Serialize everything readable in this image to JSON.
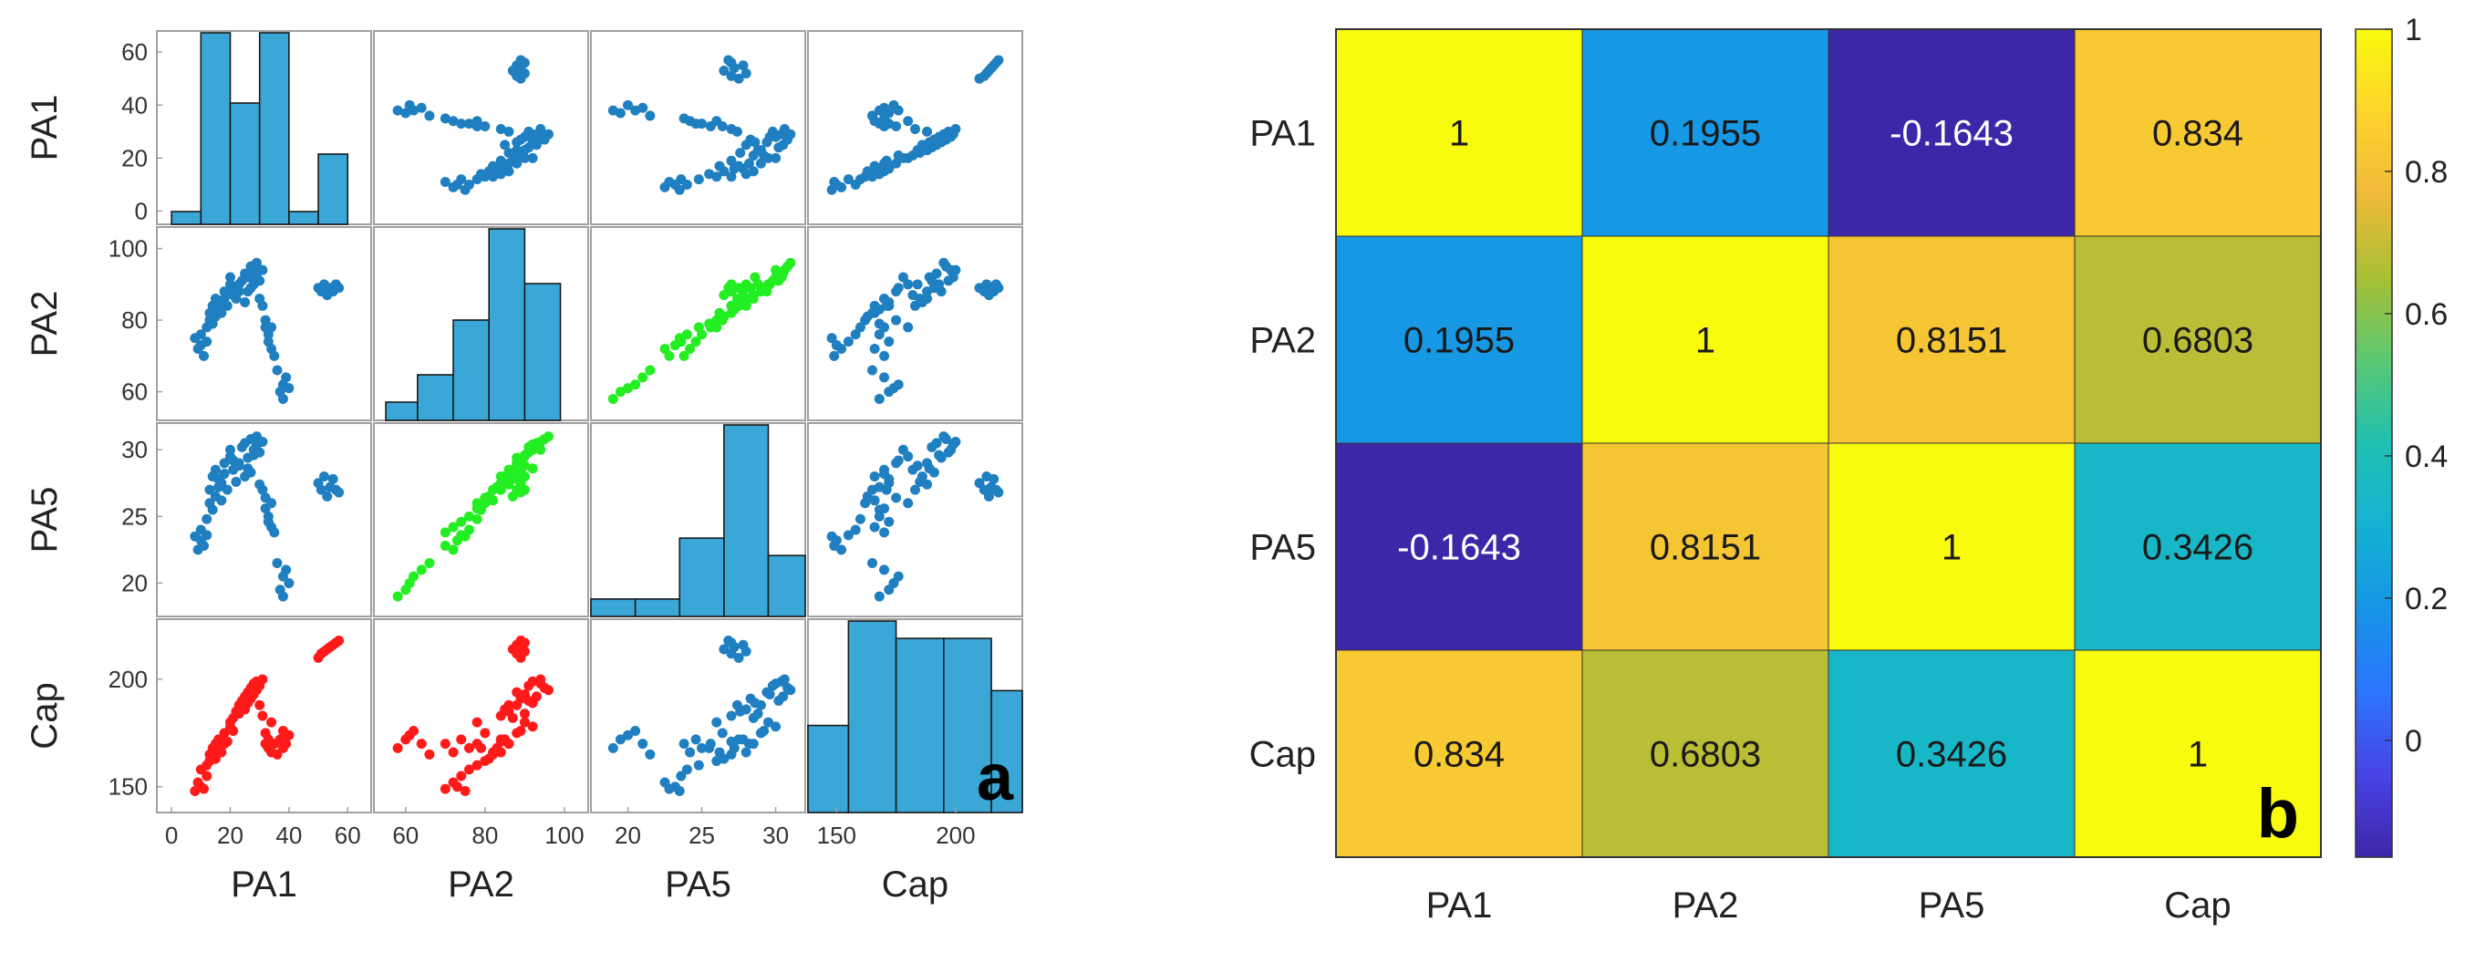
{
  "colors": {
    "histogram_fill": "#3aa7d6",
    "scatter_default": "#1f7fc0",
    "scatter_highlight_green": "#22ee22",
    "scatter_highlight_red": "#ff1a1a",
    "heatmap_colormap": "parula"
  },
  "chart_data": [
    {
      "type": "scatter",
      "subtype": "scatter-matrix",
      "panel_label": "a",
      "variables": [
        "PA1",
        "PA2",
        "PA5",
        "Cap"
      ],
      "axes": {
        "PA1": {
          "range": [
            -5,
            68
          ],
          "ticks": [
            0,
            20,
            40,
            60
          ],
          "tick_labels": [
            "0",
            "20",
            "40",
            "60"
          ]
        },
        "PA2": {
          "range": [
            52,
            106
          ],
          "ticks": [
            60,
            80,
            100
          ],
          "tick_labels": [
            "60",
            "80",
            "100"
          ]
        },
        "PA5": {
          "range": [
            17.5,
            32
          ],
          "ticks": [
            20,
            25,
            30
          ],
          "tick_labels": [
            "20",
            "25",
            "30"
          ]
        },
        "Cap": {
          "range": [
            138,
            228
          ],
          "ticks": [
            150,
            200
          ],
          "tick_labels": [
            "150",
            "200"
          ]
        }
      },
      "histograms": {
        "PA1": {
          "edges": [
            0,
            10,
            20,
            30,
            40,
            50,
            60
          ],
          "counts": [
            2,
            30,
            19,
            30,
            2,
            11
          ]
        },
        "PA2": {
          "edges": [
            55,
            63,
            72,
            81,
            90,
            99
          ],
          "counts": [
            2,
            5,
            11,
            21,
            15
          ]
        },
        "PA5": {
          "edges": [
            17.5,
            20.5,
            23.5,
            26.5,
            29.5,
            32.0
          ],
          "counts": [
            2,
            2,
            9,
            22,
            7
          ]
        },
        "Cap": {
          "edges": [
            135,
            155,
            175,
            195,
            215,
            235
          ],
          "counts": [
            10,
            22,
            20,
            20,
            14
          ]
        }
      },
      "highlight": {
        "green": [
          [
            "PA2",
            "PA5"
          ],
          [
            "PA5",
            "PA2"
          ]
        ],
        "red": [
          [
            "Cap",
            "PA1"
          ],
          [
            "Cap",
            "PA2"
          ]
        ]
      },
      "samples": [
        [
          8,
          75,
          23.5,
          148
        ],
        [
          9,
          72,
          22.5,
          152
        ],
        [
          10,
          73,
          23.2,
          150
        ],
        [
          10,
          76,
          24.0,
          158
        ],
        [
          11,
          70,
          22.8,
          149
        ],
        [
          12,
          78,
          24.8,
          160
        ],
        [
          12,
          74,
          23.6,
          155
        ],
        [
          13,
          80,
          26.0,
          162
        ],
        [
          13,
          82,
          27.0,
          165
        ],
        [
          14,
          79,
          25.5,
          168
        ],
        [
          14,
          84,
          28.0,
          166
        ],
        [
          15,
          81,
          26.5,
          163
        ],
        [
          15,
          86,
          28.5,
          170
        ],
        [
          16,
          83,
          27.2,
          168
        ],
        [
          16,
          85,
          27.8,
          172
        ],
        [
          17,
          82,
          26.2,
          166
        ],
        [
          17,
          84,
          27.5,
          172
        ],
        [
          18,
          88,
          29.0,
          175
        ],
        [
          18,
          86,
          28.2,
          170
        ],
        [
          19,
          84,
          27.0,
          171
        ],
        [
          20,
          90,
          29.5,
          180
        ],
        [
          20,
          92,
          30.0,
          178
        ],
        [
          21,
          87,
          28.5,
          182
        ],
        [
          21,
          89,
          29.2,
          176
        ],
        [
          22,
          86,
          27.6,
          185
        ],
        [
          23,
          88,
          29.0,
          188
        ],
        [
          23,
          90,
          28.8,
          184
        ],
        [
          24,
          91,
          30.2,
          190
        ],
        [
          25,
          85,
          28.0,
          186
        ],
        [
          25,
          93,
          30.5,
          192
        ],
        [
          26,
          88,
          29.4,
          194
        ],
        [
          26,
          92,
          28.6,
          189
        ],
        [
          27,
          95,
          30.8,
          196
        ],
        [
          27,
          89,
          28.3,
          191
        ],
        [
          28,
          94,
          30.0,
          198
        ],
        [
          28,
          90,
          29.6,
          193
        ],
        [
          29,
          96,
          31.0,
          195
        ],
        [
          29,
          92,
          30.4,
          199
        ],
        [
          30,
          91,
          29.8,
          197
        ],
        [
          30,
          86,
          27.4,
          188
        ],
        [
          31,
          94,
          30.6,
          200
        ],
        [
          31,
          84,
          27.0,
          183
        ],
        [
          32,
          80,
          26.4,
          175
        ],
        [
          32,
          78,
          25.6,
          170
        ],
        [
          33,
          76,
          25.0,
          168
        ],
        [
          33,
          74,
          24.6,
          172
        ],
        [
          34,
          78,
          26.0,
          180
        ],
        [
          34,
          72,
          24.2,
          166
        ],
        [
          35,
          70,
          23.8,
          170
        ],
        [
          36,
          66,
          21.5,
          165
        ],
        [
          37,
          60,
          19.5,
          172
        ],
        [
          38,
          58,
          19.0,
          168
        ],
        [
          38,
          62,
          20.5,
          176
        ],
        [
          39,
          64,
          21.0,
          170
        ],
        [
          40,
          61,
          20.0,
          174
        ],
        [
          50,
          89,
          27.5,
          210
        ],
        [
          51,
          88,
          27.0,
          212
        ],
        [
          52,
          90,
          28.0,
          213
        ],
        [
          53,
          87,
          26.5,
          214
        ],
        [
          54,
          89,
          27.2,
          215
        ],
        [
          55,
          88,
          27.8,
          216
        ],
        [
          56,
          90,
          27.0,
          217
        ],
        [
          57,
          89,
          26.8,
          218
        ]
      ]
    },
    {
      "type": "heatmap",
      "panel_label": "b",
      "x_categories": [
        "PA1",
        "PA2",
        "PA5",
        "Cap"
      ],
      "y_categories": [
        "PA1",
        "PA2",
        "PA5",
        "Cap"
      ],
      "values": [
        [
          1,
          0.1955,
          -0.1643,
          0.834
        ],
        [
          0.1955,
          1,
          0.8151,
          0.6803
        ],
        [
          -0.1643,
          0.8151,
          1,
          0.3426
        ],
        [
          0.834,
          0.6803,
          0.3426,
          1
        ]
      ],
      "cell_labels": [
        [
          "1",
          "0.1955",
          "-0.1643",
          "0.834"
        ],
        [
          "0.1955",
          "1",
          "0.8151",
          "0.6803"
        ],
        [
          "-0.1643",
          "0.8151",
          "1",
          "0.3426"
        ],
        [
          "0.834",
          "0.6803",
          "0.3426",
          "1"
        ]
      ],
      "colorbar": {
        "range": [
          -0.1643,
          1
        ],
        "ticks": [
          0,
          0.2,
          0.4,
          0.6,
          0.8,
          1
        ],
        "tick_labels": [
          "0",
          "0.2",
          "0.4",
          "0.6",
          "0.8",
          "1"
        ]
      }
    }
  ]
}
